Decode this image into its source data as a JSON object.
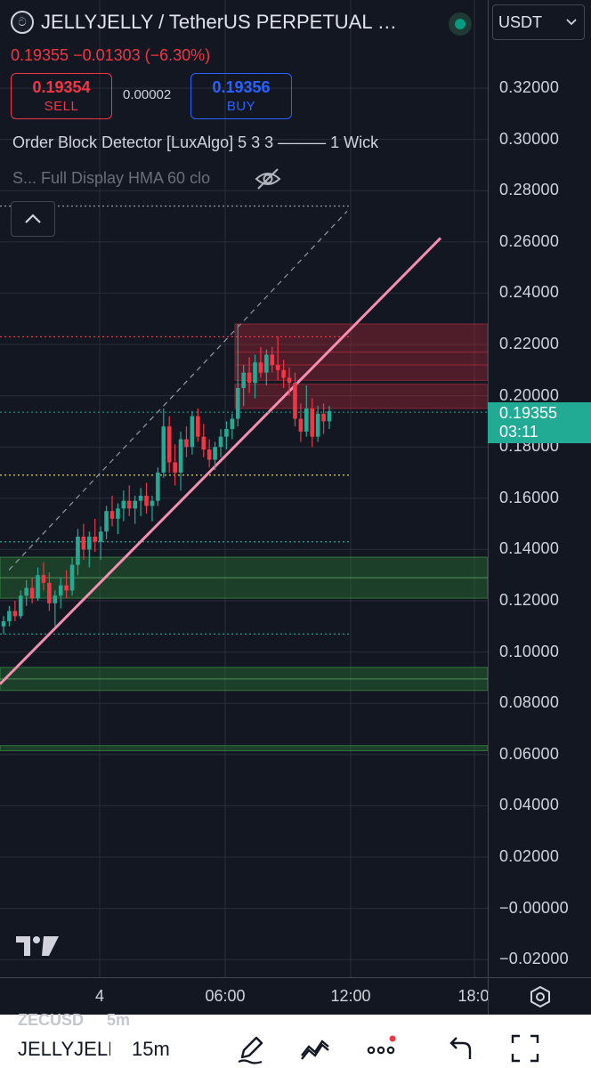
{
  "header": {
    "symbol_icon": "jellyjelly-logo-icon",
    "symbol_title": "JELLYJELLY / TetherUS PERPETUAL …",
    "price_change": "0.19355 −0.01303 (−6.30%)",
    "sell": {
      "price": "0.19354",
      "label": "SELL"
    },
    "buy": {
      "price": "0.19356",
      "label": "BUY"
    },
    "spread": "0.00002",
    "indicator_1": "Order Block Detector [LuxAlgo] 5 3 3 ——— 1 Wick",
    "indicator_2": "S... Full Display HMA 60 clo",
    "currency": "USDT"
  },
  "price_axis": {
    "ticks": [
      "0.32000",
      "0.30000",
      "0.28000",
      "0.26000",
      "0.24000",
      "0.22000",
      "0.20000",
      "0.18000",
      "0.16000",
      "0.14000",
      "0.12000",
      "0.10000",
      "0.08000",
      "0.06000",
      "0.04000",
      "0.02000",
      "−0.00000",
      "−0.02000"
    ],
    "current_price": "0.19355",
    "countdown": "03:11"
  },
  "time_axis": {
    "ticks": [
      "4",
      "06:00",
      "12:00",
      "18:0"
    ]
  },
  "bottom_bar": {
    "ghost_symbol": "ZECUSD",
    "ghost_interval": "5m",
    "symbol": "JELLYJELLY",
    "interval": "15m"
  },
  "colors": {
    "background": "#131722",
    "up": "#22ab94",
    "down": "#f23645",
    "trendline": "#f48fb1",
    "bearish_block": "#7a1f2b",
    "bullish_block": "#1b4d24"
  },
  "chart_data": {
    "type": "candlestick",
    "ylim": [
      -0.025,
      0.33
    ],
    "price_ticks": [
      0.32,
      0.3,
      0.28,
      0.26,
      0.24,
      0.22,
      0.2,
      0.18,
      0.16,
      0.14,
      0.12,
      0.1,
      0.08,
      0.06,
      0.04,
      0.02,
      0.0,
      -0.02
    ],
    "ohlc": [
      [
        0.11,
        0.114,
        0.107,
        0.112
      ],
      [
        0.112,
        0.118,
        0.11,
        0.116
      ],
      [
        0.116,
        0.12,
        0.112,
        0.114
      ],
      [
        0.114,
        0.124,
        0.113,
        0.122
      ],
      [
        0.122,
        0.128,
        0.118,
        0.125
      ],
      [
        0.125,
        0.129,
        0.119,
        0.121
      ],
      [
        0.121,
        0.133,
        0.12,
        0.13
      ],
      [
        0.13,
        0.135,
        0.124,
        0.127
      ],
      [
        0.127,
        0.131,
        0.116,
        0.119
      ],
      [
        0.119,
        0.124,
        0.11,
        0.122
      ],
      [
        0.122,
        0.129,
        0.117,
        0.126
      ],
      [
        0.126,
        0.132,
        0.121,
        0.124
      ],
      [
        0.124,
        0.137,
        0.122,
        0.134
      ],
      [
        0.134,
        0.148,
        0.13,
        0.145
      ],
      [
        0.145,
        0.15,
        0.136,
        0.14
      ],
      [
        0.14,
        0.147,
        0.133,
        0.145
      ],
      [
        0.145,
        0.152,
        0.139,
        0.143
      ],
      [
        0.143,
        0.149,
        0.136,
        0.147
      ],
      [
        0.147,
        0.157,
        0.144,
        0.155
      ],
      [
        0.155,
        0.161,
        0.149,
        0.152
      ],
      [
        0.152,
        0.158,
        0.146,
        0.156
      ],
      [
        0.156,
        0.163,
        0.151,
        0.159
      ],
      [
        0.159,
        0.165,
        0.153,
        0.156
      ],
      [
        0.156,
        0.161,
        0.15,
        0.159
      ],
      [
        0.159,
        0.164,
        0.153,
        0.161
      ],
      [
        0.161,
        0.166,
        0.154,
        0.157
      ],
      [
        0.157,
        0.161,
        0.151,
        0.159
      ],
      [
        0.159,
        0.172,
        0.157,
        0.17
      ],
      [
        0.17,
        0.195,
        0.168,
        0.188
      ],
      [
        0.188,
        0.192,
        0.17,
        0.174
      ],
      [
        0.174,
        0.181,
        0.165,
        0.17
      ],
      [
        0.17,
        0.186,
        0.163,
        0.183
      ],
      [
        0.183,
        0.188,
        0.176,
        0.18
      ],
      [
        0.18,
        0.194,
        0.177,
        0.192
      ],
      [
        0.192,
        0.195,
        0.182,
        0.184
      ],
      [
        0.184,
        0.189,
        0.176,
        0.179
      ],
      [
        0.179,
        0.183,
        0.172,
        0.175
      ],
      [
        0.175,
        0.182,
        0.171,
        0.18
      ],
      [
        0.18,
        0.187,
        0.176,
        0.184
      ],
      [
        0.184,
        0.19,
        0.179,
        0.187
      ],
      [
        0.187,
        0.193,
        0.183,
        0.191
      ],
      [
        0.191,
        0.228,
        0.188,
        0.203
      ],
      [
        0.203,
        0.212,
        0.196,
        0.209
      ],
      [
        0.209,
        0.215,
        0.201,
        0.205
      ],
      [
        0.205,
        0.216,
        0.199,
        0.213
      ],
      [
        0.213,
        0.219,
        0.207,
        0.209
      ],
      [
        0.209,
        0.218,
        0.204,
        0.216
      ],
      [
        0.216,
        0.219,
        0.209,
        0.212
      ],
      [
        0.212,
        0.223,
        0.206,
        0.21
      ],
      [
        0.21,
        0.214,
        0.203,
        0.207
      ],
      [
        0.207,
        0.211,
        0.2,
        0.205
      ],
      [
        0.205,
        0.209,
        0.188,
        0.191
      ],
      [
        0.191,
        0.197,
        0.182,
        0.186
      ],
      [
        0.186,
        0.204,
        0.184,
        0.195
      ],
      [
        0.195,
        0.199,
        0.18,
        0.184
      ],
      [
        0.184,
        0.196,
        0.182,
        0.193
      ],
      [
        0.193,
        0.197,
        0.185,
        0.19
      ],
      [
        0.19,
        0.196,
        0.187,
        0.194
      ]
    ],
    "bearish_order_blocks": [
      [
        0.206,
        0.228
      ],
      [
        0.195,
        0.2045
      ]
    ],
    "bullish_order_blocks": [
      [
        0.121,
        0.137
      ],
      [
        0.085,
        0.094
      ],
      [
        0.0615,
        0.0635
      ]
    ],
    "dotted_levels": [
      {
        "price": 0.274,
        "color": "#9598a1"
      },
      {
        "price": 0.223,
        "color": "#f23645"
      },
      {
        "price": 0.169,
        "color": "#e8d44d"
      },
      {
        "price": 0.143,
        "color": "#22ab94"
      },
      {
        "price": 0.107,
        "color": "#22ab94"
      }
    ],
    "current_price": 0.19355
  }
}
